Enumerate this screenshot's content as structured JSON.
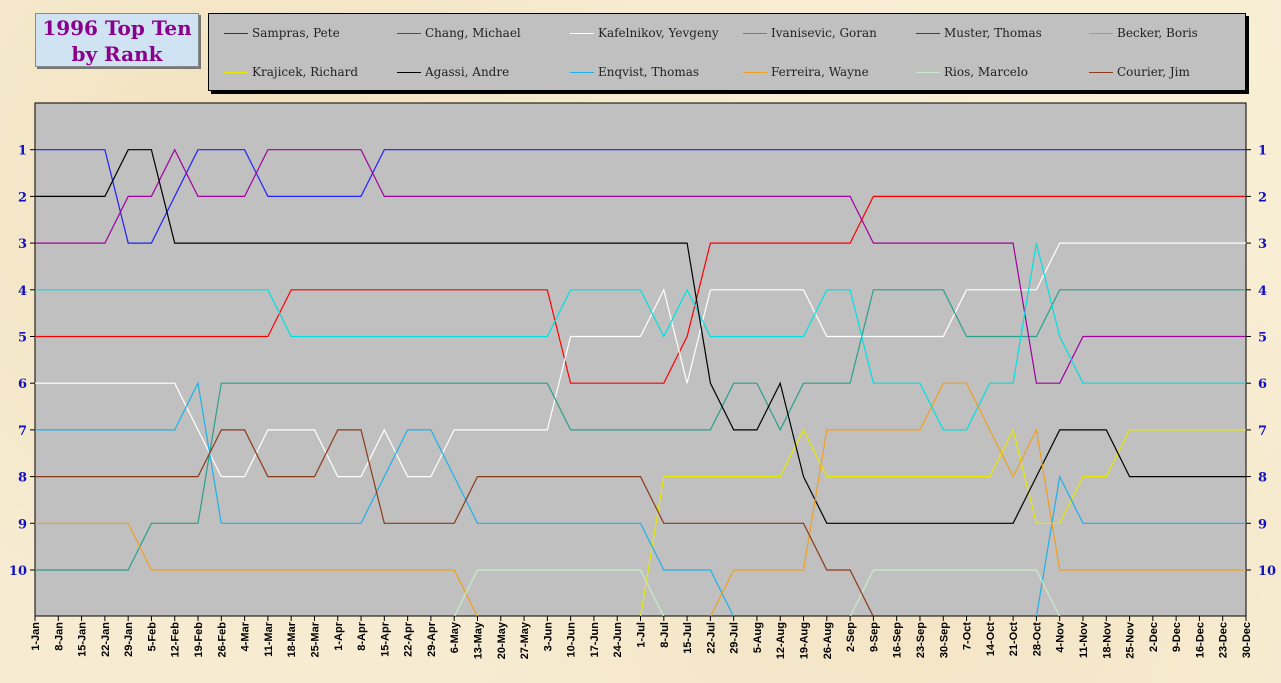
{
  "title_line1": "1996 Top Ten",
  "title_line2": "by Rank",
  "chart_data": {
    "type": "line",
    "title": "1996 Top Ten by Rank",
    "x": [
      "1-Jan",
      "8-Jan",
      "15-Jan",
      "22-Jan",
      "29-Jan",
      "5-Feb",
      "12-Feb",
      "19-Feb",
      "26-Feb",
      "4-Mar",
      "11-Mar",
      "18-Mar",
      "25-Mar",
      "1-Apr",
      "8-Apr",
      "15-Apr",
      "22-Apr",
      "29-Apr",
      "6-May",
      "13-May",
      "20-May",
      "27-May",
      "3-Jun",
      "10-Jun",
      "17-Jun",
      "24-Jun",
      "1-Jul",
      "8-Jul",
      "15-Jul",
      "22-Jul",
      "29-Jul",
      "5-Aug",
      "12-Aug",
      "19-Aug",
      "26-Aug",
      "2-Sep",
      "9-Sep",
      "16-Sep",
      "23-Sep",
      "30-Sep",
      "7-Oct",
      "14-Oct",
      "21-Oct",
      "28-Oct",
      "4-Nov",
      "11-Nov",
      "18-Nov",
      "25-Nov",
      "2-Dec",
      "9-Dec",
      "16-Dec",
      "23-Dec",
      "30-Dec"
    ],
    "y_ticks": [
      "1",
      "2",
      "3",
      "4",
      "5",
      "6",
      "7",
      "8",
      "9",
      "10"
    ],
    "ylim": [
      11,
      0
    ],
    "background": "#c0c0c0",
    "legend_position": "top",
    "series": [
      {
        "name": "Sampras, Pete",
        "color": "#2020ff",
        "values": [
          1,
          1,
          1,
          1,
          3,
          3,
          2,
          1,
          1,
          1,
          2,
          2,
          2,
          2,
          2,
          1,
          1,
          1,
          1,
          1,
          1,
          1,
          1,
          1,
          1,
          1,
          1,
          1,
          1,
          1,
          1,
          1,
          1,
          1,
          1,
          1,
          1,
          1,
          1,
          1,
          1,
          1,
          1,
          1,
          1,
          1,
          1,
          1,
          1,
          1,
          1,
          1,
          1
        ]
      },
      {
        "name": "Chang, Michael",
        "color": "#ff0000",
        "values": [
          5,
          5,
          5,
          5,
          5,
          5,
          5,
          5,
          5,
          5,
          5,
          4,
          4,
          4,
          4,
          4,
          4,
          4,
          4,
          4,
          4,
          4,
          4,
          6,
          6,
          6,
          6,
          6,
          5,
          3,
          3,
          3,
          3,
          3,
          3,
          3,
          2,
          2,
          2,
          2,
          2,
          2,
          2,
          2,
          2,
          2,
          2,
          2,
          2,
          2,
          2,
          2,
          2
        ]
      },
      {
        "name": "Kafelnikov, Yevgeny",
        "color": "#ffffff",
        "values": [
          6,
          6,
          6,
          6,
          6,
          6,
          6,
          7,
          8,
          8,
          7,
          7,
          7,
          8,
          8,
          7,
          8,
          8,
          7,
          7,
          7,
          7,
          7,
          5,
          5,
          5,
          5,
          4,
          6,
          4,
          4,
          4,
          4,
          4,
          5,
          5,
          5,
          5,
          5,
          5,
          4,
          4,
          4,
          4,
          3,
          3,
          3,
          3,
          3,
          3,
          3,
          3,
          3
        ]
      },
      {
        "name": "Ivanisevic, Goran",
        "color": "#2aa08a",
        "values": [
          10,
          10,
          10,
          10,
          10,
          9,
          9,
          9,
          6,
          6,
          6,
          6,
          6,
          6,
          6,
          6,
          6,
          6,
          6,
          6,
          6,
          6,
          6,
          7,
          7,
          7,
          7,
          7,
          7,
          7,
          6,
          6,
          7,
          6,
          6,
          6,
          4,
          4,
          4,
          4,
          5,
          5,
          5,
          5,
          4,
          4,
          4,
          4,
          4,
          4,
          4,
          4,
          4
        ]
      },
      {
        "name": "Muster, Thomas",
        "color": "#a000a0",
        "values": [
          3,
          3,
          3,
          3,
          2,
          2,
          1,
          2,
          2,
          2,
          1,
          1,
          1,
          1,
          1,
          2,
          2,
          2,
          2,
          2,
          2,
          2,
          2,
          2,
          2,
          2,
          2,
          2,
          2,
          2,
          2,
          2,
          2,
          2,
          2,
          2,
          3,
          3,
          3,
          3,
          3,
          3,
          3,
          6,
          6,
          5,
          5,
          5,
          5,
          5,
          5,
          5,
          5
        ]
      },
      {
        "name": "Becker, Boris",
        "color": "#00e0e0",
        "values": [
          4,
          4,
          4,
          4,
          4,
          4,
          4,
          4,
          4,
          4,
          4,
          5,
          5,
          5,
          5,
          5,
          5,
          5,
          5,
          5,
          5,
          5,
          5,
          4,
          4,
          4,
          4,
          5,
          4,
          5,
          5,
          5,
          5,
          5,
          4,
          4,
          6,
          6,
          6,
          7,
          7,
          6,
          6,
          3,
          5,
          6,
          6,
          6,
          6,
          6,
          6,
          6,
          6
        ]
      },
      {
        "name": "Krajicek, Richard",
        "color": "#e8e800",
        "values": [
          null,
          null,
          null,
          null,
          null,
          null,
          null,
          null,
          null,
          null,
          null,
          null,
          null,
          null,
          null,
          null,
          null,
          null,
          null,
          null,
          null,
          null,
          null,
          null,
          null,
          null,
          11,
          8,
          8,
          8,
          8,
          8,
          8,
          7,
          8,
          8,
          8,
          8,
          8,
          8,
          8,
          8,
          7,
          9,
          9,
          8,
          8,
          7,
          7,
          7,
          7,
          7,
          7
        ]
      },
      {
        "name": "Agassi, Andre",
        "color": "#000000",
        "values": [
          2,
          2,
          2,
          2,
          1,
          1,
          3,
          3,
          3,
          3,
          3,
          3,
          3,
          3,
          3,
          3,
          3,
          3,
          3,
          3,
          3,
          3,
          3,
          3,
          3,
          3,
          3,
          3,
          3,
          6,
          7,
          7,
          6,
          8,
          9,
          9,
          9,
          9,
          9,
          9,
          9,
          9,
          9,
          8,
          7,
          7,
          7,
          8,
          8,
          8,
          8,
          8,
          8
        ]
      },
      {
        "name": "Enqvist, Thomas",
        "color": "#1fb0e8",
        "values": [
          7,
          7,
          7,
          7,
          7,
          7,
          7,
          6,
          9,
          9,
          9,
          9,
          9,
          9,
          9,
          8,
          7,
          7,
          8,
          9,
          9,
          9,
          9,
          9,
          9,
          9,
          9,
          10,
          10,
          10,
          11,
          null,
          null,
          null,
          null,
          null,
          null,
          null,
          null,
          null,
          null,
          null,
          null,
          11,
          8,
          9,
          9,
          9,
          9,
          9,
          9,
          9,
          9
        ]
      },
      {
        "name": "Ferreira, Wayne",
        "color": "#f0a020",
        "values": [
          9,
          9,
          9,
          9,
          9,
          10,
          10,
          10,
          10,
          10,
          10,
          10,
          10,
          10,
          10,
          10,
          10,
          10,
          10,
          11,
          null,
          null,
          null,
          null,
          null,
          null,
          null,
          null,
          null,
          11,
          10,
          10,
          10,
          10,
          7,
          7,
          7,
          7,
          7,
          6,
          6,
          7,
          8,
          7,
          10,
          10,
          10,
          10,
          10,
          10,
          10,
          10,
          10
        ]
      },
      {
        "name": "Rios, Marcelo",
        "color": "#c8ecc8",
        "values": [
          null,
          null,
          null,
          null,
          null,
          null,
          null,
          null,
          null,
          null,
          null,
          null,
          null,
          null,
          null,
          null,
          null,
          null,
          11,
          10,
          10,
          10,
          10,
          10,
          10,
          10,
          10,
          11,
          null,
          null,
          null,
          null,
          null,
          null,
          null,
          11,
          10,
          10,
          10,
          10,
          10,
          10,
          10,
          10,
          11,
          null,
          null,
          null,
          null,
          null,
          null,
          null,
          null
        ]
      },
      {
        "name": "Courier, Jim",
        "color": "#8b3a1a",
        "values": [
          8,
          8,
          8,
          8,
          8,
          8,
          8,
          8,
          7,
          7,
          8,
          8,
          8,
          7,
          7,
          9,
          9,
          9,
          9,
          8,
          8,
          8,
          8,
          8,
          8,
          8,
          8,
          9,
          9,
          9,
          9,
          9,
          9,
          9,
          10,
          10,
          11,
          null,
          null,
          null,
          null,
          null,
          null,
          null,
          null,
          null,
          null,
          null,
          null,
          null,
          null,
          null,
          null
        ]
      }
    ]
  }
}
